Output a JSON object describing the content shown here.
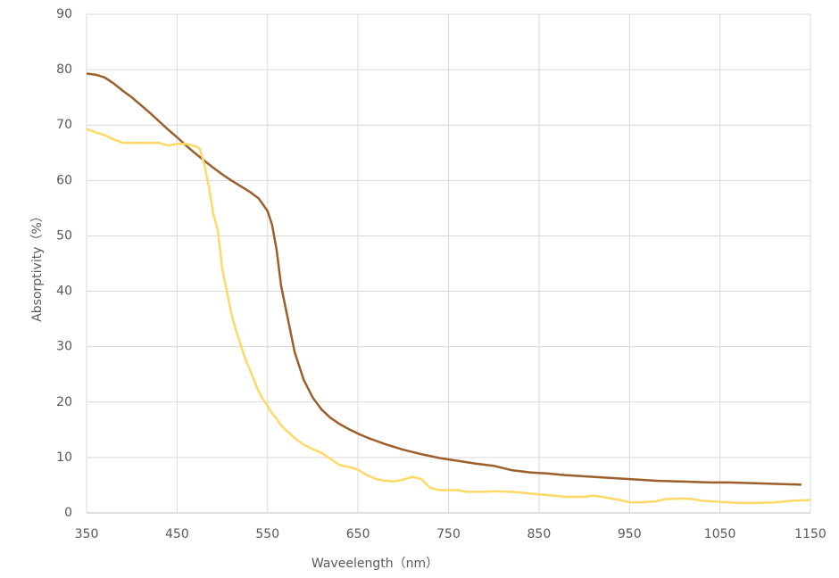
{
  "chart_data": {
    "type": "line",
    "x_label": "Waveelength（nm）",
    "y_label": "Absorptivity（%）",
    "xlim": [
      350,
      1150
    ],
    "xticks": [
      350,
      450,
      550,
      650,
      750,
      850,
      950,
      1050,
      1150
    ],
    "ylim": [
      0,
      90
    ],
    "yticks": [
      0,
      10,
      20,
      30,
      40,
      50,
      60,
      70,
      80,
      90
    ],
    "grid": true,
    "series": [
      {
        "color": "#9c5f2a",
        "x": [
          350,
          360,
          370,
          380,
          390,
          400,
          410,
          420,
          430,
          440,
          450,
          460,
          470,
          480,
          490,
          500,
          510,
          520,
          530,
          540,
          550,
          555,
          560,
          565,
          570,
          575,
          580,
          590,
          600,
          610,
          620,
          630,
          640,
          650,
          660,
          670,
          680,
          690,
          700,
          720,
          740,
          760,
          780,
          800,
          820,
          840,
          860,
          880,
          900,
          920,
          940,
          960,
          980,
          1000,
          1020,
          1040,
          1060,
          1080,
          1100,
          1120,
          1140
        ],
        "values": [
          79.3,
          79.1,
          78.6,
          77.5,
          76.2,
          75,
          73.6,
          72.2,
          70.7,
          69.2,
          67.8,
          66.3,
          64.9,
          63.6,
          62.3,
          61.1,
          60,
          59,
          58,
          56.8,
          54.5,
          52,
          47.5,
          41,
          37,
          33,
          29,
          24,
          20.8,
          18.6,
          17.1,
          16,
          15.1,
          14.3,
          13.6,
          13,
          12.4,
          11.9,
          11.4,
          10.6,
          9.9,
          9.4,
          8.9,
          8.5,
          7.7,
          7.3,
          7.1,
          6.8,
          6.6,
          6.4,
          6.2,
          6,
          5.8,
          5.7,
          5.6,
          5.5,
          5.5,
          5.4,
          5.3,
          5.2,
          5.1
        ]
      },
      {
        "color": "#ffd966",
        "x": [
          350,
          360,
          370,
          380,
          390,
          400,
          420,
          430,
          440,
          450,
          460,
          470,
          475,
          480,
          485,
          490,
          495,
          500,
          505,
          510,
          515,
          520,
          525,
          530,
          535,
          540,
          545,
          550,
          555,
          560,
          565,
          570,
          580,
          590,
          600,
          610,
          620,
          630,
          640,
          650,
          660,
          670,
          680,
          690,
          700,
          710,
          720,
          730,
          740,
          760,
          770,
          790,
          800,
          820,
          840,
          860,
          880,
          900,
          910,
          920,
          940,
          950,
          960,
          980,
          990,
          1010,
          1020,
          1030,
          1050,
          1070,
          1090,
          1110,
          1130,
          1150
        ],
        "values": [
          69.3,
          68.7,
          68.2,
          67.4,
          66.8,
          66.8,
          66.8,
          66.8,
          66.3,
          66.6,
          66.6,
          66.2,
          65.8,
          63,
          59,
          54,
          51,
          44,
          40,
          36,
          33,
          30.5,
          28,
          26,
          24,
          22,
          20.5,
          19.3,
          18,
          17,
          15.8,
          15,
          13.5,
          12.3,
          11.5,
          10.8,
          9.7,
          8.6,
          8.3,
          7.8,
          6.8,
          6.1,
          5.8,
          5.7,
          6,
          6.5,
          6.1,
          4.5,
          4.1,
          4.1,
          3.8,
          3.8,
          3.9,
          3.8,
          3.5,
          3.2,
          2.9,
          2.9,
          3.1,
          2.9,
          2.3,
          1.9,
          1.9,
          2.1,
          2.5,
          2.6,
          2.5,
          2.2,
          2,
          1.8,
          1.8,
          1.9,
          2.2,
          2.3
        ]
      }
    ]
  }
}
